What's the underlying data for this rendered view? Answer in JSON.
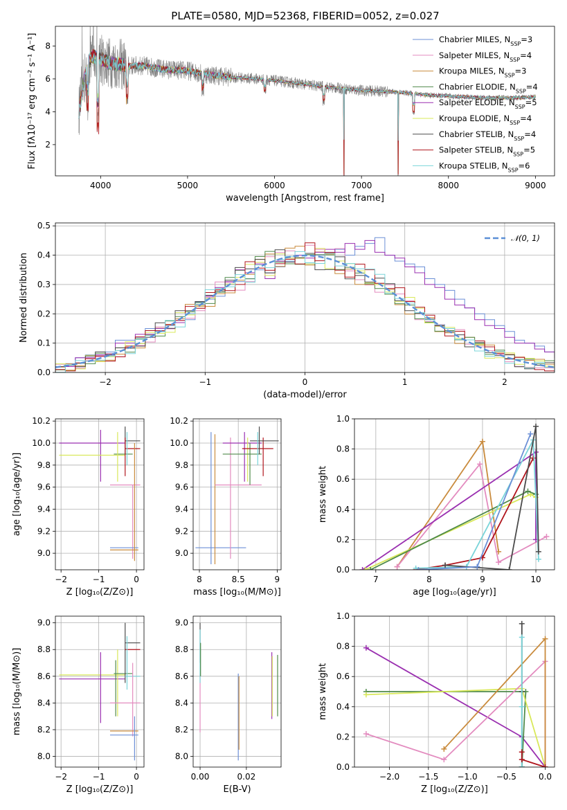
{
  "figure": {
    "title": "PLATE=0580, MJD=52368, FIBERID=0052, z=0.027"
  },
  "colors": {
    "Chabrier MILES": "#6b8fd6",
    "Salpeter MILES": "#e38bbf",
    "Kroupa MILES": "#c98b3d",
    "Chabrier ELODIE": "#4f8a4a",
    "Salpeter ELODIE": "#9a2fb0",
    "Kroupa ELODIE": "#d9e85a",
    "Chabrier STELIB": "#4a4a4a",
    "Salpeter STELIB": "#b0141c",
    "Kroupa STELIB": "#79d4d9",
    "data": "#808080",
    "gauss": "#5b8fd6"
  },
  "chart_data": [
    {
      "id": "spectrum",
      "type": "line",
      "xlabel": "wavelength [Angstrom, rest frame]",
      "ylabel": "Flux [fλ10⁻¹⁷ erg cm⁻² s⁻¹ A⁻¹]",
      "xlim": [
        3480,
        9220
      ],
      "ylim": [
        0.1,
        9.2
      ],
      "xticks": [
        4000,
        5000,
        6000,
        7000,
        8000,
        9000
      ],
      "yticks": [
        2,
        4,
        6,
        8
      ],
      "legend_loc": "right",
      "legend": [
        {
          "name": "Chabrier MILES",
          "sup": "=3"
        },
        {
          "name": "Salpeter MILES",
          "sup": "=4"
        },
        {
          "name": "Kroupa MILES",
          "sup": "=3"
        },
        {
          "name": "Chabrier ELODIE",
          "sup": "=4"
        },
        {
          "name": "Salpeter ELODIE",
          "sup": "=5"
        },
        {
          "name": "Kroupa ELODIE",
          "sup": "=4"
        },
        {
          "name": "Chabrier STELIB",
          "sup": "=4"
        },
        {
          "name": "Salpeter STELIB",
          "sup": "=5"
        },
        {
          "name": "Kroupa STELIB",
          "sup": "=6"
        }
      ],
      "continuum": {
        "x": [
          3750,
          3800,
          3850,
          3900,
          4000,
          4100,
          4200,
          4300,
          4500,
          4700,
          5000,
          5200,
          5500,
          5800,
          6000,
          6300,
          6600,
          6800,
          7000,
          7200,
          7400,
          7600,
          7800,
          8000,
          8200,
          8400,
          8600,
          8800,
          9000
        ],
        "y": [
          4.0,
          5.6,
          6.9,
          7.4,
          7.2,
          7.0,
          6.9,
          6.8,
          6.8,
          6.6,
          6.5,
          6.3,
          6.1,
          6.0,
          5.9,
          5.7,
          5.5,
          5.4,
          5.3,
          5.25,
          5.2,
          5.1,
          5.0,
          4.95,
          4.9,
          4.85,
          4.85,
          4.85,
          4.9
        ]
      },
      "dips": [
        {
          "x": 3850,
          "y": 4.4
        },
        {
          "x": 3970,
          "y": 3.0
        },
        {
          "x": 4305,
          "y": 4.9
        },
        {
          "x": 5175,
          "y": 5.4
        },
        {
          "x": 5890,
          "y": 5.3
        },
        {
          "x": 6565,
          "y": 4.7
        },
        {
          "x": 6800,
          "y": 0.15
        },
        {
          "x": 7420,
          "y": 0.15
        },
        {
          "x": 7600,
          "y": 4.0
        }
      ]
    },
    {
      "id": "residuals",
      "type": "bar",
      "xlabel": "(data-model)/error",
      "ylabel": "Normed distribution",
      "xlim": [
        -2.5,
        2.5
      ],
      "ylim": [
        0,
        0.51
      ],
      "xticks": [
        -2,
        -1,
        0,
        1,
        2
      ],
      "yticks": [
        0.0,
        0.1,
        0.2,
        0.3,
        0.4,
        0.5
      ],
      "bin_width": 0.1,
      "legend": "𝒩(0, 1)",
      "series": [
        {
          "name": "Chabrier MILES",
          "values": [
            0.02,
            0.03,
            0.05,
            0.06,
            0.06,
            0.07,
            0.11,
            0.11,
            0.12,
            0.15,
            0.14,
            0.16,
            0.17,
            0.18,
            0.24,
            0.25,
            0.26,
            0.3,
            0.31,
            0.32,
            0.35,
            0.34,
            0.36,
            0.38,
            0.39,
            0.37,
            0.4,
            0.41,
            0.42,
            0.4,
            0.43,
            0.44,
            0.46,
            0.4,
            0.38,
            0.37,
            0.36,
            0.32,
            0.3,
            0.28,
            0.25,
            0.22,
            0.2,
            0.18,
            0.16,
            0.14,
            0.11,
            0.1,
            0.09,
            0.07,
            0.06
          ]
        },
        {
          "name": "Salpeter ELODIE",
          "values": [
            0.02,
            0.02,
            0.05,
            0.05,
            0.06,
            0.06,
            0.1,
            0.1,
            0.13,
            0.13,
            0.15,
            0.15,
            0.17,
            0.2,
            0.23,
            0.26,
            0.29,
            0.31,
            0.35,
            0.34,
            0.37,
            0.32,
            0.38,
            0.39,
            0.4,
            0.39,
            0.41,
            0.42,
            0.41,
            0.44,
            0.42,
            0.45,
            0.41,
            0.4,
            0.39,
            0.36,
            0.34,
            0.3,
            0.29,
            0.25,
            0.23,
            0.22,
            0.18,
            0.16,
            0.15,
            0.12,
            0.1,
            0.1,
            0.08,
            0.07,
            0.05
          ]
        }
      ]
    },
    {
      "id": "age-vs-Z",
      "type": "scatter",
      "xlabel": "Z [log₁₀(Z/Z⊙)]",
      "ylabel": "age  [log₁₀(age/yr)]",
      "xlim": [
        -2.15,
        0.2
      ],
      "ylim": [
        8.85,
        10.22
      ],
      "xticks": [
        -2,
        -1,
        0
      ],
      "yticks": [
        9.0,
        9.2,
        9.4,
        9.6,
        9.8,
        10.0,
        10.2
      ]
    },
    {
      "id": "age-vs-mass",
      "type": "scatter",
      "xlabel": "mass [log₁₀(M/M⊙)]",
      "xlim": [
        7.92,
        9.05
      ],
      "ylim": [
        8.85,
        10.22
      ],
      "xticks": [
        8.0,
        8.5,
        9.0
      ],
      "yticks": [
        9.0,
        9.2,
        9.4,
        9.6,
        9.8,
        10.0,
        10.2
      ]
    },
    {
      "id": "massweight-vs-age",
      "type": "line",
      "xlabel": "age  [log₁₀(age/yr)]",
      "ylabel": "mass weight",
      "xlim": [
        6.6,
        10.35
      ],
      "ylim": [
        0,
        1
      ],
      "xticks": [
        7,
        8,
        9,
        10
      ],
      "yticks": [
        0.0,
        0.2,
        0.4,
        0.6,
        0.8,
        1.0
      ],
      "series": [
        {
          "name": "Kroupa MILES",
          "x": [
            7.4,
            9.0,
            9.3
          ],
          "y": [
            0.02,
            0.85,
            0.12
          ]
        },
        {
          "name": "Salpeter MILES",
          "x": [
            7.4,
            8.95,
            9.3,
            10.2
          ],
          "y": [
            0.02,
            0.7,
            0.05,
            0.22
          ]
        },
        {
          "name": "Salpeter ELODIE",
          "x": [
            6.75,
            10.0,
            10.0
          ],
          "y": [
            0.0,
            0.78,
            0.2
          ]
        },
        {
          "name": "Kroupa ELODIE",
          "x": [
            6.8,
            9.9,
            10.0
          ],
          "y": [
            0.0,
            0.5,
            0.48
          ]
        },
        {
          "name": "Chabrier ELODIE",
          "x": [
            6.9,
            9.85,
            10.0
          ],
          "y": [
            0.0,
            0.52,
            0.5
          ]
        },
        {
          "name": "Salpeter STELIB",
          "x": [
            7.75,
            8.3,
            9.0,
            9.95
          ],
          "y": [
            0.0,
            0.03,
            0.08,
            0.74
          ]
        },
        {
          "name": "Kroupa STELIB",
          "x": [
            7.75,
            8.7,
            9.95,
            10.05
          ],
          "y": [
            0.01,
            0.02,
            0.86,
            0.07
          ]
        },
        {
          "name": "Chabrier STELIB",
          "x": [
            8.3,
            9.5,
            10.0,
            10.05
          ],
          "y": [
            0.03,
            0.0,
            0.95,
            0.12
          ]
        },
        {
          "name": "Chabrier MILES",
          "x": [
            7.8,
            8.9,
            9.9
          ],
          "y": [
            0.0,
            0.02,
            0.9
          ]
        }
      ]
    },
    {
      "id": "mass-vs-Z",
      "type": "scatter",
      "xlabel": "Z [log₁₀(Z/Z⊙)]",
      "ylabel": "mass [log₁₀(M/M⊙)]",
      "xlim": [
        -2.15,
        0.2
      ],
      "ylim": [
        7.92,
        9.05
      ],
      "xticks": [
        -2,
        -1,
        0
      ],
      "yticks": [
        8.0,
        8.2,
        8.4,
        8.6,
        8.8,
        9.0
      ]
    },
    {
      "id": "mass-vs-EBV",
      "type": "scatter",
      "xlabel": "E(B-V)",
      "xlim": [
        -0.003,
        0.035
      ],
      "ylim": [
        7.92,
        9.05
      ],
      "xticks": [
        0.0,
        0.02
      ],
      "yticks": [
        8.0,
        8.2,
        8.4,
        8.6,
        8.8,
        9.0
      ]
    },
    {
      "id": "massweight-vs-Z",
      "type": "line",
      "xlabel": "Z [log₁₀(Z/Z⊙)]",
      "ylabel": "mass weight",
      "xlim": [
        -2.45,
        0.12
      ],
      "ylim": [
        0,
        1
      ],
      "xticks": [
        -2.0,
        -1.5,
        -1.0,
        -0.5,
        0.0
      ],
      "yticks": [
        0.0,
        0.2,
        0.4,
        0.6,
        0.8,
        1.0
      ],
      "series": [
        {
          "name": "Salpeter ELODIE",
          "x": [
            -2.3,
            -0.3,
            0.0
          ],
          "y": [
            0.79,
            0.2,
            0.0
          ]
        },
        {
          "name": "Chabrier ELODIE",
          "x": [
            -2.3,
            -0.25,
            -0.3
          ],
          "y": [
            0.5,
            0.5,
            0.0
          ]
        },
        {
          "name": "Kroupa ELODIE",
          "x": [
            -2.3,
            -0.3,
            0.0
          ],
          "y": [
            0.48,
            0.52,
            0.0
          ]
        },
        {
          "name": "Salpeter MILES",
          "x": [
            -2.3,
            -1.3,
            0.0,
            0.0
          ],
          "y": [
            0.22,
            0.05,
            0.7,
            0.0
          ]
        },
        {
          "name": "Kroupa MILES",
          "x": [
            -1.3,
            0.0,
            0.0
          ],
          "y": [
            0.12,
            0.85,
            0.0
          ]
        },
        {
          "name": "Chabrier STELIB",
          "x": [
            -0.3,
            -0.3,
            -0.3
          ],
          "y": [
            0.95,
            0.5,
            0.0
          ]
        },
        {
          "name": "Kroupa STELIB",
          "x": [
            -0.3,
            -0.3,
            -0.3
          ],
          "y": [
            0.86,
            0.4,
            0.0
          ]
        },
        {
          "name": "Salpeter STELIB",
          "x": [
            -0.3,
            -0.3,
            0.0
          ],
          "y": [
            0.1,
            0.05,
            0.0
          ]
        }
      ]
    }
  ]
}
